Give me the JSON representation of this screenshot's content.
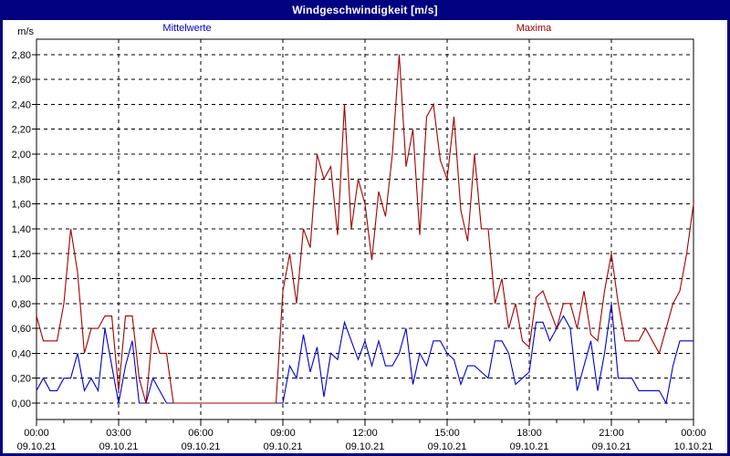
{
  "window": {
    "title": "Windgeschwindigkeit [m/s]"
  },
  "legend": {
    "mittelwerte": "Mittelwerte",
    "maxima": "Maxima"
  },
  "unit_label": "m/s",
  "colors": {
    "frame": "#000080",
    "titlebar_text": "#FFFFFF",
    "background": "#FFFFFF",
    "plot_border": "#000000",
    "grid": "#000000",
    "tick_text": "#000000",
    "mittelwerte_line": "#0000CC",
    "maxima_line": "#A00000"
  },
  "chart_data": {
    "type": "line",
    "title": "Windgeschwindigkeit [m/s]",
    "ylabel": "m/s",
    "xlabel": "time of day (hourly minor ticks, 3-hour major ticks)",
    "grid": "dashed",
    "legend_position": "top",
    "ylim": [
      0,
      2.8
    ],
    "x_hours_span": 24,
    "sample_interval_minutes": 15,
    "y_ticks": [
      {
        "value": 0.0,
        "label": "0,00"
      },
      {
        "value": 0.2,
        "label": "0,20"
      },
      {
        "value": 0.4,
        "label": "0,40"
      },
      {
        "value": 0.6,
        "label": "0,60"
      },
      {
        "value": 0.8,
        "label": "0,80"
      },
      {
        "value": 1.0,
        "label": "1,00"
      },
      {
        "value": 1.2,
        "label": "1,20"
      },
      {
        "value": 1.4,
        "label": "1,40"
      },
      {
        "value": 1.6,
        "label": "1,60"
      },
      {
        "value": 1.8,
        "label": "1,80"
      },
      {
        "value": 2.0,
        "label": "2,00"
      },
      {
        "value": 2.2,
        "label": "2,20"
      },
      {
        "value": 2.4,
        "label": "2,40"
      },
      {
        "value": 2.6,
        "label": "2,60"
      },
      {
        "value": 2.8,
        "label": "2,80"
      }
    ],
    "x_ticks": [
      {
        "hour": 0,
        "time": "00:00",
        "date": "09.10.21"
      },
      {
        "hour": 3,
        "time": "03:00",
        "date": "09.10.21"
      },
      {
        "hour": 6,
        "time": "06:00",
        "date": "09.10.21"
      },
      {
        "hour": 9,
        "time": "09:00",
        "date": "09.10.21"
      },
      {
        "hour": 12,
        "time": "12:00",
        "date": "09.10.21"
      },
      {
        "hour": 15,
        "time": "15:00",
        "date": "09.10.21"
      },
      {
        "hour": 18,
        "time": "18:00",
        "date": "09.10.21"
      },
      {
        "hour": 21,
        "time": "21:00",
        "date": "09.10.21"
      },
      {
        "hour": 24,
        "time": "00:00",
        "date": "10.10.21"
      }
    ],
    "series": [
      {
        "name": "Mittelwerte",
        "color_key": "mittelwerte_line",
        "values": [
          0.1,
          0.2,
          0.1,
          0.1,
          0.2,
          0.2,
          0.4,
          0.1,
          0.2,
          0.1,
          0.6,
          0.3,
          0.0,
          0.3,
          0.5,
          0.0,
          0.0,
          0.2,
          0.1,
          0.0,
          0.0,
          0.0,
          0.0,
          0.0,
          0.0,
          0.0,
          0.0,
          0.0,
          0.0,
          0.0,
          0.0,
          0.0,
          0.0,
          0.0,
          0.0,
          0.0,
          0.0,
          0.3,
          0.2,
          0.55,
          0.25,
          0.45,
          0.05,
          0.4,
          0.35,
          0.65,
          0.5,
          0.35,
          0.5,
          0.3,
          0.5,
          0.3,
          0.3,
          0.4,
          0.6,
          0.15,
          0.4,
          0.3,
          0.5,
          0.5,
          0.4,
          0.35,
          0.15,
          0.3,
          0.3,
          0.25,
          0.2,
          0.5,
          0.5,
          0.4,
          0.15,
          0.2,
          0.25,
          0.65,
          0.65,
          0.5,
          0.6,
          0.7,
          0.6,
          0.1,
          0.3,
          0.5,
          0.1,
          0.4,
          0.8,
          0.2,
          0.2,
          0.2,
          0.1,
          0.1,
          0.1,
          0.1,
          0.0,
          0.3,
          0.5,
          0.5,
          0.5
        ]
      },
      {
        "name": "Maxima",
        "color_key": "maxima_line",
        "values": [
          0.7,
          0.5,
          0.5,
          0.5,
          0.8,
          1.4,
          1.05,
          0.4,
          0.6,
          0.6,
          0.7,
          0.7,
          0.1,
          0.7,
          0.7,
          0.2,
          0.0,
          0.6,
          0.4,
          0.4,
          0.0,
          0.0,
          0.0,
          0.0,
          0.0,
          0.0,
          0.0,
          0.0,
          0.0,
          0.0,
          0.0,
          0.0,
          0.0,
          0.0,
          0.0,
          0.0,
          0.9,
          1.2,
          0.8,
          1.4,
          1.25,
          2.0,
          1.8,
          1.9,
          1.35,
          2.4,
          1.4,
          1.8,
          1.6,
          1.15,
          1.7,
          1.5,
          2.0,
          2.8,
          1.9,
          2.2,
          1.35,
          2.3,
          2.4,
          1.95,
          1.8,
          2.3,
          1.55,
          1.3,
          2.0,
          1.4,
          1.4,
          0.8,
          1.0,
          0.6,
          0.8,
          0.5,
          0.45,
          0.85,
          0.9,
          0.75,
          0.6,
          0.8,
          0.8,
          0.6,
          0.9,
          0.55,
          0.5,
          0.9,
          1.2,
          0.8,
          0.5,
          0.5,
          0.5,
          0.6,
          0.5,
          0.4,
          0.6,
          0.8,
          0.9,
          1.2,
          1.6
        ]
      }
    ]
  }
}
